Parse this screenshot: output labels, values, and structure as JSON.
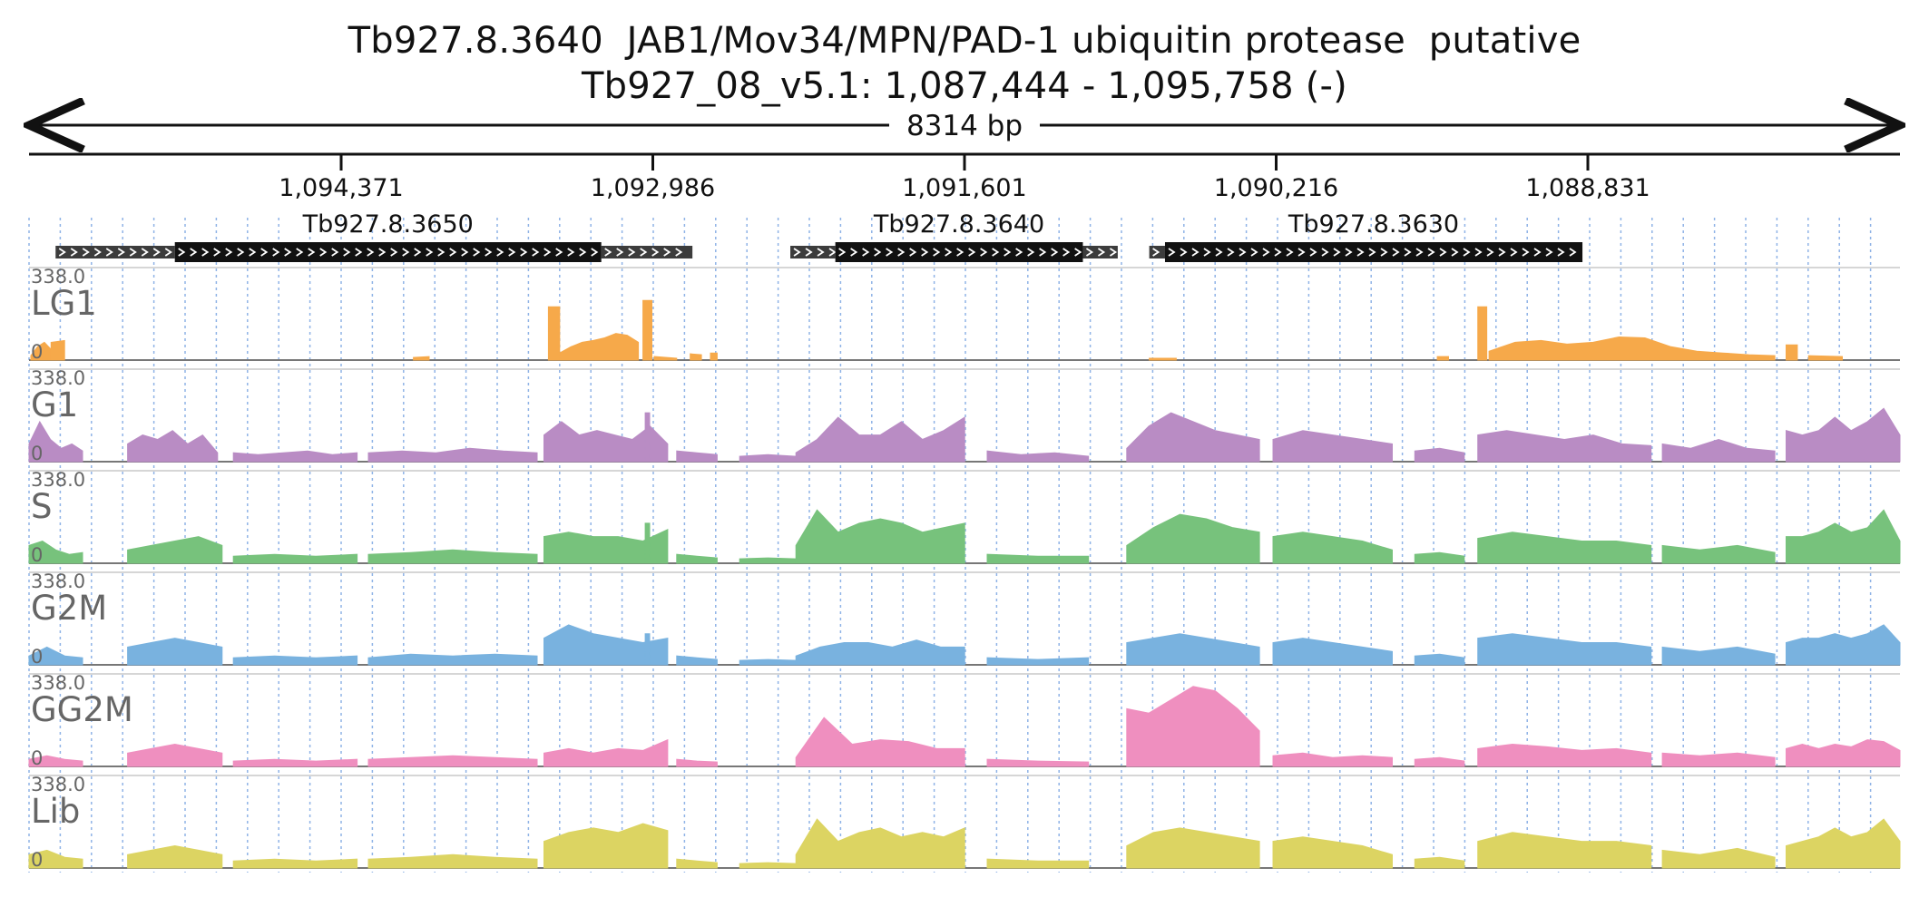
{
  "header": {
    "title": "Tb927.8.3640  JAB1/Mov34/MPN/PAD-1 ubiquitin protease  putative",
    "locus": "Tb927_08_v5.1: 1,087,444 - 1,095,758 (-)",
    "span_label": "8314 bp"
  },
  "chart_data": {
    "type": "area",
    "title": "Tb927.8.3640  JAB1/Mov34/MPN/PAD-1 ubiquitin protease  putative",
    "subtitle": "Tb927_08_v5.1: 1,087,444 - 1,095,758 (-)",
    "x_ticks": [
      1094371,
      1092986,
      1091601,
      1090216,
      1088831
    ],
    "x_tick_labels": [
      "1,094,371",
      "1,092,986",
      "1,091,601",
      "1,090,216",
      "1,088,831"
    ],
    "region": {
      "start": 1095758,
      "end": 1087444,
      "strand": "-"
    },
    "grid": true,
    "genes": [
      {
        "name": "Tb927.8.3650",
        "utr5": [
          1095640,
          1095110
        ],
        "cds": [
          1095110,
          1093215
        ],
        "utr3": [
          1093215,
          1092810
        ]
      },
      {
        "name": "Tb927.8.3640",
        "utr5": [
          1092375,
          1092175
        ],
        "cds": [
          1092175,
          1091075
        ],
        "utr3": [
          1091075,
          1090920
        ]
      },
      {
        "name": "Tb927.8.3630",
        "utr5": [
          1090780,
          1090710
        ],
        "cds": [
          1090710,
          1088855
        ],
        "utr3": null
      }
    ],
    "tracks": [
      {
        "name": "LG1",
        "color": "#f6a94a",
        "max": 338.0,
        "min": 0,
        "segments": [
          [
            1095750,
            1095660,
            [
              0.05,
              0.15,
              0.2,
              0.12
            ]
          ],
          [
            1095660,
            1095600,
            [
              0.2,
              0.22
            ]
          ],
          [
            1094050,
            1093980,
            [
              0.03,
              0.04
            ]
          ],
          [
            1093450,
            1093400,
            [
              0.6,
              0.6
            ]
          ],
          [
            1093400,
            1093050,
            [
              0.08,
              0.15,
              0.2,
              0.22,
              0.25,
              0.3,
              0.28,
              0.2
            ]
          ],
          [
            1093030,
            1092990,
            [
              0.67,
              0.67
            ]
          ],
          [
            1092980,
            1092880,
            [
              0.04,
              0.02
            ]
          ],
          [
            1092820,
            1092770,
            [
              0.07,
              0.06
            ]
          ],
          [
            1092730,
            1092700,
            [
              0.08,
              0.08
            ]
          ],
          [
            1090780,
            1090660,
            [
              0.02,
              0.02
            ]
          ],
          [
            1089500,
            1089450,
            [
              0.04,
              0.04
            ]
          ],
          [
            1089320,
            1089280,
            [
              0.6,
              0.6
            ]
          ],
          [
            1089270,
            1088000,
            [
              0.1,
              0.2,
              0.22,
              0.18,
              0.2,
              0.26,
              0.25,
              0.15,
              0.1,
              0.08,
              0.06,
              0.05
            ]
          ],
          [
            1087950,
            1087900,
            [
              0.17,
              0.17
            ]
          ],
          [
            1087850,
            1087700,
            [
              0.05,
              0.04
            ]
          ]
        ]
      },
      {
        "name": "G1",
        "color": "#b98cc4",
        "max": 338.0,
        "min": 0,
        "segments": [
          [
            1095758,
            1095520,
            [
              0.2,
              0.45,
              0.25,
              0.15,
              0.2,
              0.12
            ]
          ],
          [
            1095320,
            1094920,
            [
              0.2,
              0.3,
              0.25,
              0.35,
              0.2,
              0.3,
              0.1
            ]
          ],
          [
            1094850,
            1094300,
            [
              0.1,
              0.08,
              0.1,
              0.12,
              0.08,
              0.1
            ]
          ],
          [
            1094250,
            1093500,
            [
              0.1,
              0.12,
              0.1,
              0.15,
              0.12,
              0.1
            ]
          ],
          [
            1093470,
            1092920,
            [
              0.3,
              0.45,
              0.3,
              0.35,
              0.3,
              0.25,
              0.4,
              0.2
            ]
          ],
          [
            1093020,
            1093000,
            [
              0.55,
              0.55
            ]
          ],
          [
            1092880,
            1092700,
            [
              0.12,
              0.1,
              0.08
            ]
          ],
          [
            1092600,
            1092350,
            [
              0.06,
              0.08,
              0.06
            ]
          ],
          [
            1092350,
            1091600,
            [
              0.1,
              0.25,
              0.5,
              0.3,
              0.3,
              0.45,
              0.25,
              0.35,
              0.5
            ]
          ],
          [
            1091500,
            1091050,
            [
              0.12,
              0.08,
              0.1,
              0.06
            ]
          ],
          [
            1090880,
            1090290,
            [
              0.15,
              0.4,
              0.55,
              0.45,
              0.35,
              0.3,
              0.25
            ]
          ],
          [
            1090230,
            1089700,
            [
              0.25,
              0.35,
              0.3,
              0.25,
              0.2
            ]
          ],
          [
            1089600,
            1089380,
            [
              0.12,
              0.15,
              0.1
            ]
          ],
          [
            1089320,
            1088550,
            [
              0.3,
              0.35,
              0.3,
              0.25,
              0.3,
              0.2,
              0.18
            ]
          ],
          [
            1088500,
            1088000,
            [
              0.2,
              0.15,
              0.25,
              0.15,
              0.12
            ]
          ],
          [
            1087950,
            1087444,
            [
              0.35,
              0.3,
              0.35,
              0.5,
              0.35,
              0.45,
              0.6,
              0.3
            ]
          ]
        ]
      },
      {
        "name": "S",
        "color": "#77c27c",
        "max": 338.0,
        "min": 0,
        "segments": [
          [
            1095758,
            1095520,
            [
              0.2,
              0.25,
              0.15,
              0.1,
              0.12
            ]
          ],
          [
            1095320,
            1094900,
            [
              0.15,
              0.2,
              0.25,
              0.3,
              0.2
            ]
          ],
          [
            1094850,
            1094300,
            [
              0.08,
              0.1,
              0.08,
              0.1
            ]
          ],
          [
            1094250,
            1093500,
            [
              0.1,
              0.12,
              0.15,
              0.12,
              0.1
            ]
          ],
          [
            1093470,
            1092920,
            [
              0.3,
              0.35,
              0.3,
              0.3,
              0.25,
              0.38
            ]
          ],
          [
            1093020,
            1093000,
            [
              0.45,
              0.45
            ]
          ],
          [
            1092880,
            1092700,
            [
              0.1,
              0.08,
              0.06
            ]
          ],
          [
            1092600,
            1092350,
            [
              0.05,
              0.06,
              0.05
            ]
          ],
          [
            1092350,
            1091600,
            [
              0.2,
              0.6,
              0.35,
              0.45,
              0.5,
              0.45,
              0.35,
              0.4,
              0.45
            ]
          ],
          [
            1091500,
            1091050,
            [
              0.1,
              0.08,
              0.08
            ]
          ],
          [
            1090880,
            1090290,
            [
              0.2,
              0.4,
              0.55,
              0.5,
              0.4,
              0.35
            ]
          ],
          [
            1090230,
            1089700,
            [
              0.3,
              0.35,
              0.3,
              0.25,
              0.15
            ]
          ],
          [
            1089600,
            1089380,
            [
              0.1,
              0.12,
              0.08
            ]
          ],
          [
            1089320,
            1088550,
            [
              0.28,
              0.35,
              0.3,
              0.25,
              0.25,
              0.2
            ]
          ],
          [
            1088500,
            1088000,
            [
              0.2,
              0.15,
              0.2,
              0.12
            ]
          ],
          [
            1087950,
            1087444,
            [
              0.3,
              0.3,
              0.35,
              0.45,
              0.35,
              0.4,
              0.6,
              0.25
            ]
          ]
        ]
      },
      {
        "name": "G2M",
        "color": "#79b2df",
        "max": 338.0,
        "min": 0,
        "segments": [
          [
            1095758,
            1095520,
            [
              0.1,
              0.2,
              0.1,
              0.08
            ]
          ],
          [
            1095320,
            1094900,
            [
              0.2,
              0.25,
              0.3,
              0.25,
              0.2
            ]
          ],
          [
            1094850,
            1094300,
            [
              0.08,
              0.1,
              0.08,
              0.1
            ]
          ],
          [
            1094250,
            1093500,
            [
              0.08,
              0.12,
              0.1,
              0.12,
              0.1
            ]
          ],
          [
            1093470,
            1092920,
            [
              0.3,
              0.45,
              0.35,
              0.3,
              0.25,
              0.3
            ]
          ],
          [
            1093020,
            1093000,
            [
              0.35,
              0.35
            ]
          ],
          [
            1092880,
            1092700,
            [
              0.1,
              0.08,
              0.06
            ]
          ],
          [
            1092600,
            1092350,
            [
              0.05,
              0.06,
              0.05
            ]
          ],
          [
            1092350,
            1091600,
            [
              0.1,
              0.2,
              0.25,
              0.25,
              0.2,
              0.28,
              0.2,
              0.2
            ]
          ],
          [
            1091500,
            1091050,
            [
              0.08,
              0.06,
              0.08
            ]
          ],
          [
            1090880,
            1090290,
            [
              0.25,
              0.3,
              0.35,
              0.3,
              0.25,
              0.2
            ]
          ],
          [
            1090230,
            1089700,
            [
              0.25,
              0.3,
              0.25,
              0.2,
              0.15
            ]
          ],
          [
            1089600,
            1089380,
            [
              0.1,
              0.12,
              0.08
            ]
          ],
          [
            1089320,
            1088550,
            [
              0.3,
              0.35,
              0.3,
              0.25,
              0.25,
              0.2
            ]
          ],
          [
            1088500,
            1088000,
            [
              0.2,
              0.15,
              0.2,
              0.12
            ]
          ],
          [
            1087950,
            1087444,
            [
              0.25,
              0.3,
              0.3,
              0.35,
              0.3,
              0.35,
              0.45,
              0.25
            ]
          ]
        ]
      },
      {
        "name": "GG2M",
        "color": "#ef8fbf",
        "max": 338.0,
        "min": 0,
        "segments": [
          [
            1095758,
            1095520,
            [
              0.08,
              0.12,
              0.08,
              0.06
            ]
          ],
          [
            1095320,
            1094900,
            [
              0.15,
              0.2,
              0.25,
              0.2,
              0.15
            ]
          ],
          [
            1094850,
            1094300,
            [
              0.06,
              0.08,
              0.06,
              0.08
            ]
          ],
          [
            1094250,
            1093500,
            [
              0.08,
              0.1,
              0.12,
              0.1,
              0.08
            ]
          ],
          [
            1093470,
            1092920,
            [
              0.15,
              0.2,
              0.15,
              0.2,
              0.18,
              0.3
            ]
          ],
          [
            1092880,
            1092700,
            [
              0.08,
              0.06,
              0.05
            ]
          ],
          [
            1092350,
            1091600,
            [
              0.1,
              0.55,
              0.25,
              0.3,
              0.28,
              0.2,
              0.2
            ]
          ],
          [
            1091500,
            1091050,
            [
              0.08,
              0.06,
              0.05
            ]
          ],
          [
            1090880,
            1090290,
            [
              0.65,
              0.6,
              0.75,
              0.9,
              0.85,
              0.65,
              0.4
            ]
          ],
          [
            1090230,
            1089700,
            [
              0.12,
              0.15,
              0.1,
              0.12,
              0.1
            ]
          ],
          [
            1089600,
            1089380,
            [
              0.08,
              0.1,
              0.06
            ]
          ],
          [
            1089320,
            1088550,
            [
              0.2,
              0.25,
              0.22,
              0.18,
              0.2,
              0.15
            ]
          ],
          [
            1088500,
            1088000,
            [
              0.15,
              0.12,
              0.15,
              0.1
            ]
          ],
          [
            1087950,
            1087444,
            [
              0.2,
              0.25,
              0.2,
              0.25,
              0.22,
              0.3,
              0.28,
              0.18
            ]
          ]
        ]
      },
      {
        "name": "Lib",
        "color": "#dcd462",
        "max": 338.0,
        "min": 0,
        "segments": [
          [
            1095758,
            1095520,
            [
              0.15,
              0.2,
              0.12,
              0.1
            ]
          ],
          [
            1095320,
            1094900,
            [
              0.15,
              0.2,
              0.25,
              0.2,
              0.15
            ]
          ],
          [
            1094850,
            1094300,
            [
              0.08,
              0.1,
              0.08,
              0.1
            ]
          ],
          [
            1094250,
            1093500,
            [
              0.1,
              0.12,
              0.15,
              0.12,
              0.1
            ]
          ],
          [
            1093470,
            1092920,
            [
              0.3,
              0.4,
              0.45,
              0.4,
              0.5,
              0.42
            ]
          ],
          [
            1093020,
            1093000,
            [
              0.4,
              0.4
            ]
          ],
          [
            1092880,
            1092700,
            [
              0.1,
              0.08,
              0.06
            ]
          ],
          [
            1092600,
            1092350,
            [
              0.05,
              0.06,
              0.05
            ]
          ],
          [
            1092350,
            1091600,
            [
              0.15,
              0.55,
              0.3,
              0.4,
              0.45,
              0.35,
              0.4,
              0.35,
              0.45
            ]
          ],
          [
            1091500,
            1091050,
            [
              0.1,
              0.08,
              0.08
            ]
          ],
          [
            1090880,
            1090290,
            [
              0.25,
              0.4,
              0.45,
              0.4,
              0.35,
              0.3
            ]
          ],
          [
            1090230,
            1089700,
            [
              0.3,
              0.35,
              0.3,
              0.25,
              0.15
            ]
          ],
          [
            1089600,
            1089380,
            [
              0.1,
              0.12,
              0.08
            ]
          ],
          [
            1089320,
            1088550,
            [
              0.3,
              0.4,
              0.35,
              0.3,
              0.3,
              0.25
            ]
          ],
          [
            1088500,
            1088000,
            [
              0.2,
              0.15,
              0.22,
              0.12
            ]
          ],
          [
            1087950,
            1087444,
            [
              0.25,
              0.3,
              0.35,
              0.45,
              0.35,
              0.4,
              0.55,
              0.3
            ]
          ]
        ]
      }
    ]
  }
}
